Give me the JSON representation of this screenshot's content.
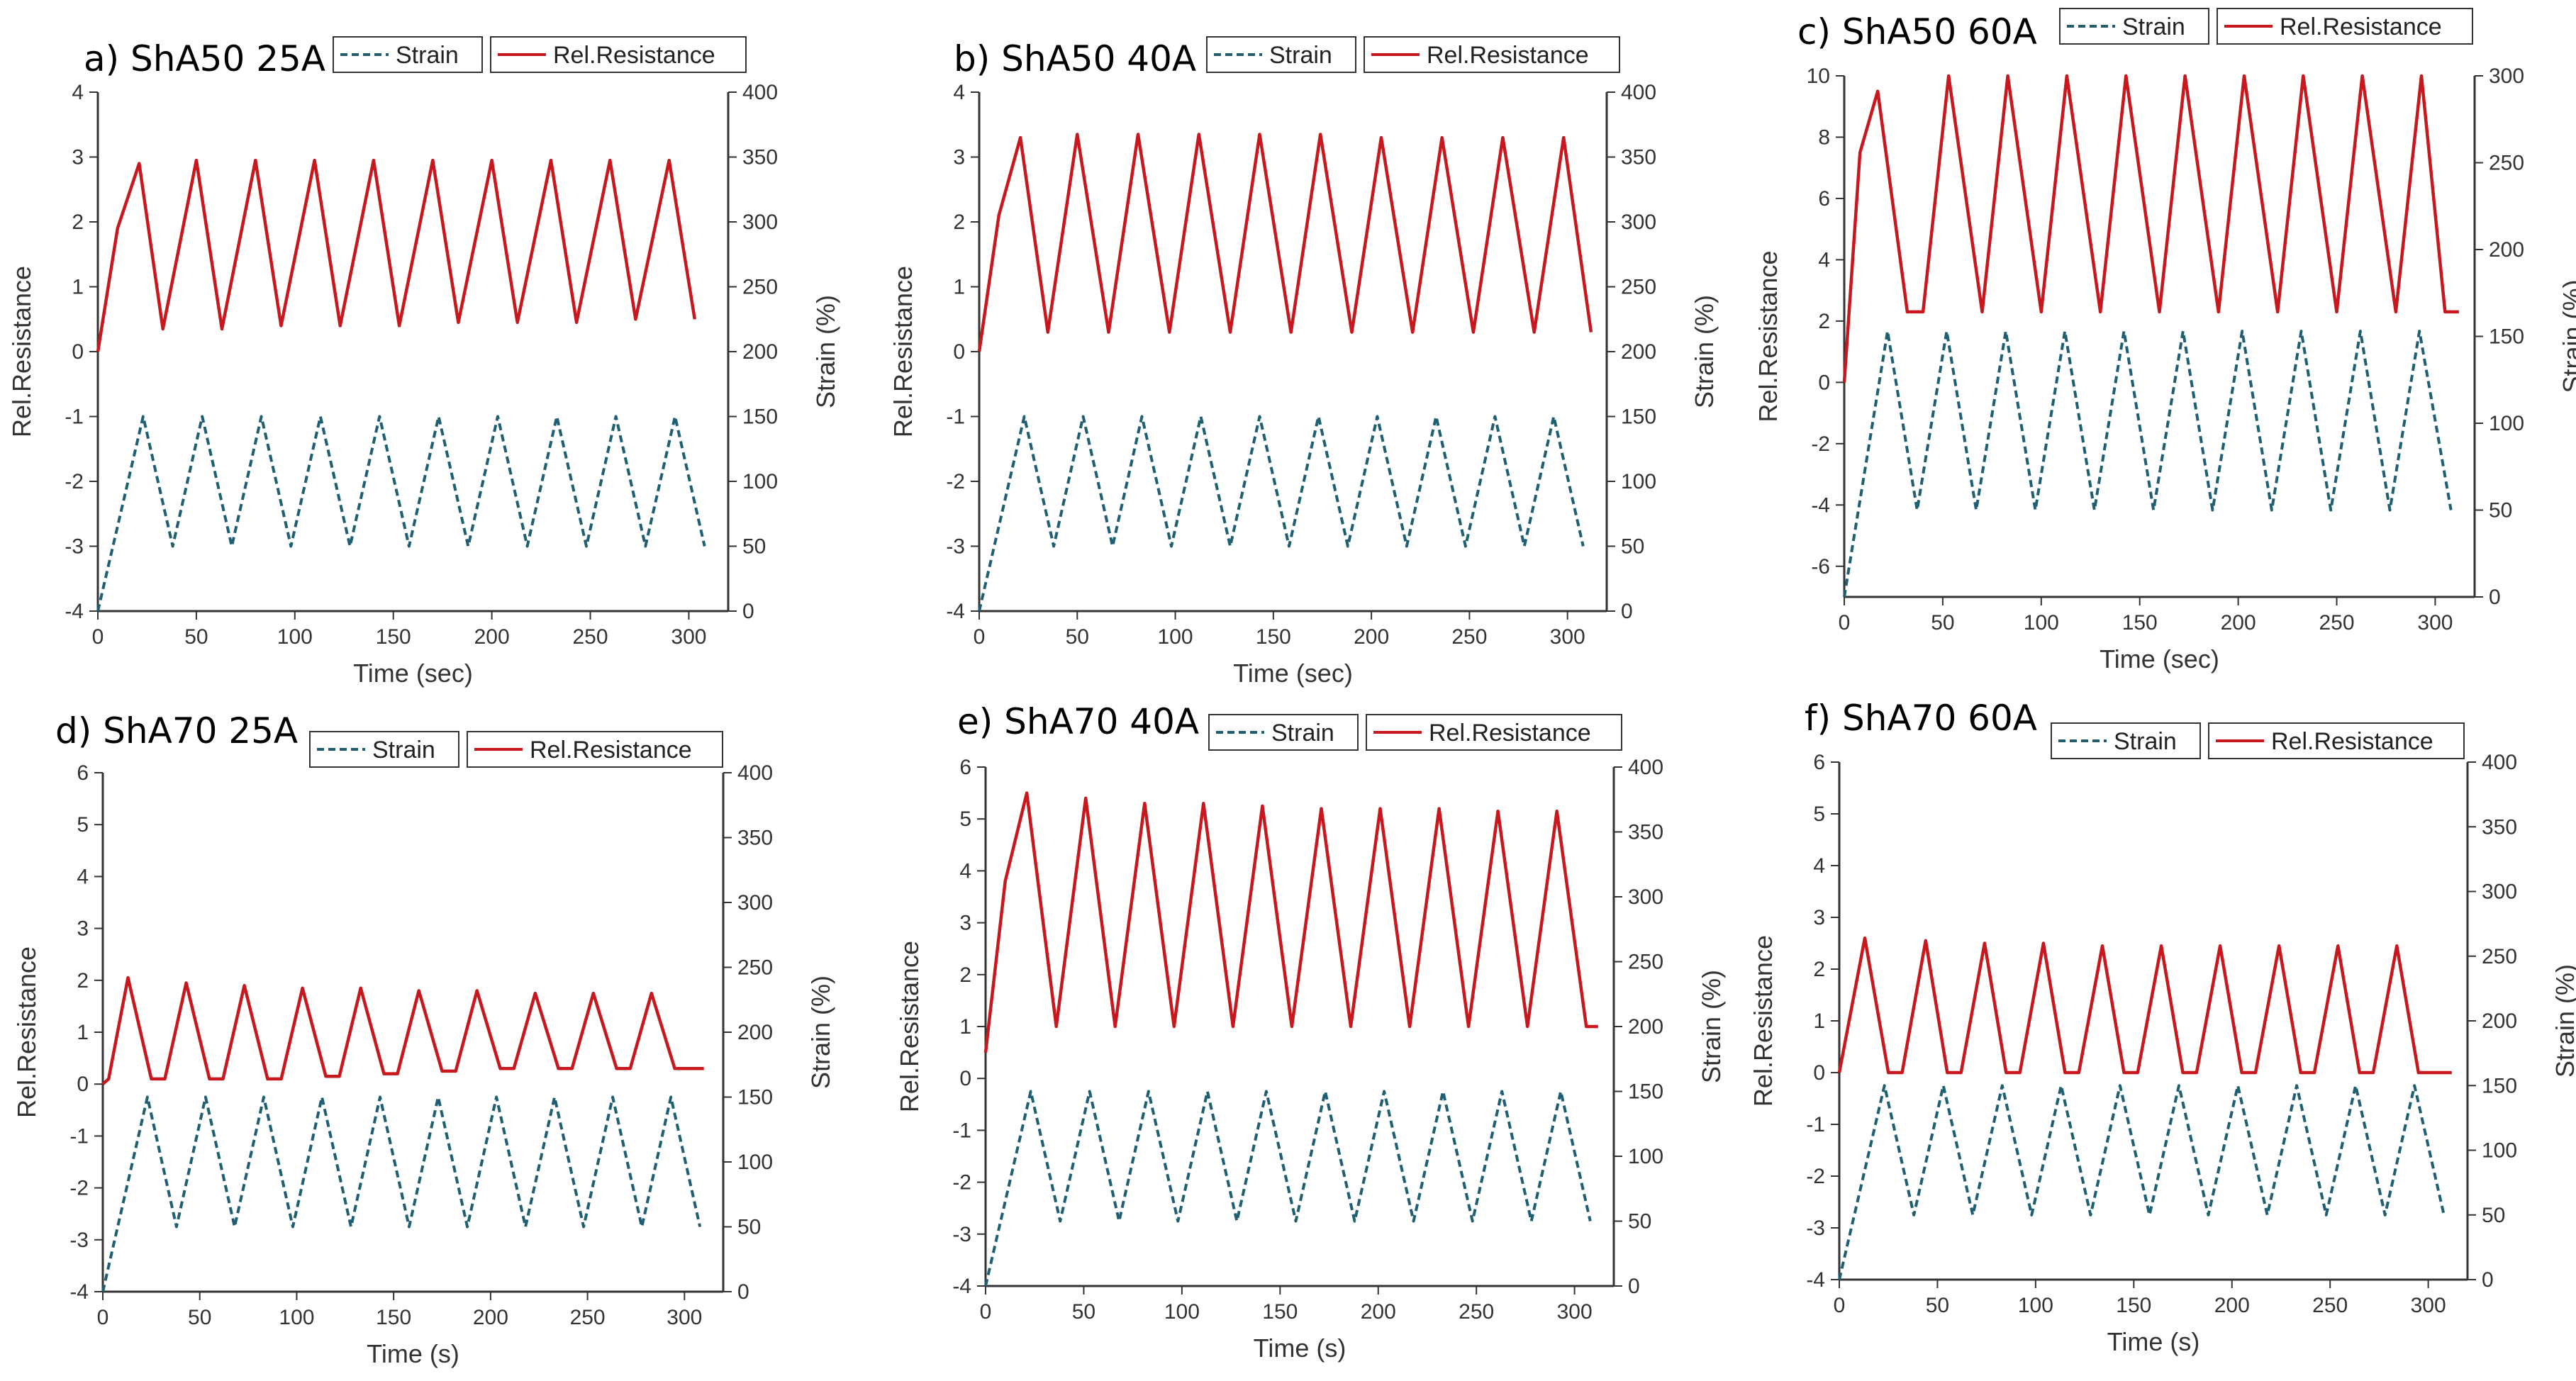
{
  "colors": {
    "strain": "#1f5f73",
    "resistance": "#c8181e",
    "axis": "#333333"
  },
  "chart_data": [
    {
      "id": "a",
      "type": "line",
      "title": "a) ShA50 25A",
      "xlabel": "Time (sec)",
      "ylabel": "Rel.Resistance",
      "y2label": "Strain (%)",
      "xlim": [
        0,
        320
      ],
      "ylim": [
        -4,
        4
      ],
      "y2lim": [
        0,
        400
      ],
      "xticks": [
        0,
        50,
        100,
        150,
        200,
        250,
        300
      ],
      "yticks": [
        -4,
        -3,
        -2,
        -1,
        0,
        1,
        2,
        3,
        4
      ],
      "y2ticks": [
        0,
        50,
        100,
        150,
        200,
        250,
        300,
        350,
        400
      ],
      "legend": [
        "Strain",
        "Rel.Resistance"
      ],
      "legend_position": "top",
      "series": [
        {
          "name": "Strain",
          "axis": "right",
          "style": "dashed",
          "x": [
            0,
            23,
            38,
            53,
            68,
            83,
            98,
            113,
            128,
            143,
            158,
            173,
            188,
            203,
            218,
            233,
            248,
            263,
            278,
            293,
            308
          ],
          "values": [
            0,
            150,
            50,
            150,
            50,
            150,
            50,
            150,
            50,
            150,
            50,
            150,
            50,
            150,
            50,
            150,
            50,
            150,
            50,
            150,
            50
          ]
        },
        {
          "name": "Rel.Resistance",
          "axis": "left",
          "style": "solid",
          "x": [
            0,
            10,
            21,
            33,
            50,
            63,
            80,
            93,
            110,
            123,
            140,
            153,
            170,
            183,
            200,
            213,
            230,
            243,
            260,
            273,
            290,
            303
          ],
          "values": [
            0,
            1.9,
            2.9,
            0.35,
            2.95,
            0.35,
            2.95,
            0.4,
            2.95,
            0.4,
            2.95,
            0.4,
            2.95,
            0.45,
            2.95,
            0.45,
            2.95,
            0.45,
            2.95,
            0.5,
            2.95,
            0.5
          ]
        }
      ]
    },
    {
      "id": "b",
      "type": "line",
      "title": "b) ShA50 40A",
      "xlabel": "Time (sec)",
      "ylabel": "Rel.Resistance",
      "y2label": "Strain (%)",
      "xlim": [
        0,
        320
      ],
      "ylim": [
        -4,
        4
      ],
      "y2lim": [
        0,
        400
      ],
      "xticks": [
        0,
        50,
        100,
        150,
        200,
        250,
        300
      ],
      "yticks": [
        -4,
        -3,
        -2,
        -1,
        0,
        1,
        2,
        3,
        4
      ],
      "y2ticks": [
        0,
        50,
        100,
        150,
        200,
        250,
        300,
        350,
        400
      ],
      "legend": [
        "Strain",
        "Rel.Resistance"
      ],
      "legend_position": "top",
      "series": [
        {
          "name": "Strain",
          "axis": "right",
          "style": "dashed",
          "x": [
            0,
            23,
            38,
            53,
            68,
            83,
            98,
            113,
            128,
            143,
            158,
            173,
            188,
            203,
            218,
            233,
            248,
            263,
            278,
            293,
            308
          ],
          "values": [
            0,
            150,
            50,
            150,
            50,
            150,
            50,
            150,
            50,
            150,
            50,
            150,
            50,
            150,
            50,
            150,
            50,
            150,
            50,
            150,
            50
          ]
        },
        {
          "name": "Rel.Resistance",
          "axis": "left",
          "style": "solid",
          "x": [
            0,
            10,
            21,
            35,
            50,
            66,
            81,
            97,
            112,
            128,
            143,
            159,
            174,
            190,
            205,
            221,
            236,
            252,
            267,
            283,
            298,
            312
          ],
          "values": [
            0,
            2.1,
            3.3,
            0.3,
            3.35,
            0.3,
            3.35,
            0.3,
            3.35,
            0.3,
            3.35,
            0.3,
            3.35,
            0.3,
            3.3,
            0.3,
            3.3,
            0.3,
            3.3,
            0.3,
            3.3,
            0.3
          ]
        }
      ]
    },
    {
      "id": "c",
      "type": "line",
      "title": "c) ShA50 60A",
      "xlabel": "Time (sec)",
      "ylabel": "Rel.Resistance",
      "y2label": "Strain (%)",
      "xlim": [
        0,
        320
      ],
      "ylim": [
        -7,
        10
      ],
      "y2lim": [
        0,
        300
      ],
      "xticks": [
        0,
        50,
        100,
        150,
        200,
        250,
        300
      ],
      "yticks": [
        -6,
        -4,
        -2,
        0,
        2,
        4,
        6,
        8,
        10
      ],
      "y2ticks": [
        0,
        50,
        100,
        150,
        200,
        250,
        300
      ],
      "legend": [
        "Strain",
        "Rel.Resistance"
      ],
      "legend_position": "top",
      "series": [
        {
          "name": "Strain",
          "axis": "right",
          "style": "dashed",
          "x": [
            0,
            22,
            37,
            52,
            67,
            82,
            97,
            112,
            127,
            142,
            157,
            172,
            187,
            202,
            217,
            232,
            247,
            262,
            277,
            292,
            308
          ],
          "values": [
            0,
            153,
            50,
            153,
            50,
            153,
            50,
            153,
            50,
            153,
            50,
            153,
            50,
            153,
            50,
            153,
            50,
            153,
            50,
            153,
            50
          ]
        },
        {
          "name": "Rel.Resistance",
          "axis": "left",
          "style": "solid",
          "x": [
            0,
            8,
            17,
            32,
            40,
            53,
            70,
            83,
            100,
            113,
            130,
            143,
            160,
            173,
            190,
            203,
            220,
            233,
            250,
            263,
            280,
            293,
            305,
            312
          ],
          "values": [
            0,
            7.5,
            9.5,
            2.3,
            2.3,
            10,
            2.3,
            10,
            2.3,
            10,
            2.3,
            10,
            2.3,
            10,
            2.3,
            10,
            2.3,
            10,
            2.3,
            10,
            2.3,
            10,
            2.3,
            2.3
          ]
        }
      ]
    },
    {
      "id": "d",
      "type": "line",
      "title": "d) ShA70 25A",
      "xlabel": "Time (s)",
      "ylabel": "Rel.Resistance",
      "y2label": "Strain (%)",
      "xlim": [
        0,
        320
      ],
      "ylim": [
        -4,
        6
      ],
      "y2lim": [
        0,
        400
      ],
      "xticks": [
        0,
        50,
        100,
        150,
        200,
        250,
        300
      ],
      "yticks": [
        -4,
        -3,
        -2,
        -1,
        0,
        1,
        2,
        3,
        4,
        5,
        6
      ],
      "y2ticks": [
        0,
        50,
        100,
        150,
        200,
        250,
        300,
        350,
        400
      ],
      "legend": [
        "Strain",
        "Rel.Resistance"
      ],
      "legend_position": "top",
      "series": [
        {
          "name": "Strain",
          "axis": "right",
          "style": "dashed",
          "x": [
            0,
            23,
            38,
            53,
            68,
            83,
            98,
            113,
            128,
            143,
            158,
            173,
            188,
            203,
            218,
            233,
            248,
            263,
            278,
            293,
            308
          ],
          "values": [
            0,
            150,
            50,
            150,
            50,
            150,
            50,
            150,
            50,
            150,
            50,
            150,
            50,
            150,
            50,
            150,
            50,
            150,
            50,
            150,
            50
          ]
        },
        {
          "name": "Rel.Resistance",
          "axis": "left",
          "style": "solid",
          "x": [
            0,
            3,
            13,
            25,
            32,
            43,
            55,
            62,
            73,
            85,
            92,
            103,
            115,
            122,
            133,
            145,
            152,
            163,
            175,
            182,
            193,
            205,
            212,
            223,
            235,
            242,
            253,
            265,
            272,
            283,
            295,
            302,
            310
          ],
          "values": [
            0,
            0.1,
            2.05,
            0.1,
            0.1,
            1.95,
            0.1,
            0.1,
            1.9,
            0.1,
            0.1,
            1.85,
            0.15,
            0.15,
            1.85,
            0.2,
            0.2,
            1.8,
            0.25,
            0.25,
            1.8,
            0.3,
            0.3,
            1.75,
            0.3,
            0.3,
            1.75,
            0.3,
            0.3,
            1.75,
            0.3,
            0.3,
            0.3
          ]
        }
      ]
    },
    {
      "id": "e",
      "type": "line",
      "title": "e) ShA70 40A",
      "xlabel": "Time (s)",
      "ylabel": "Rel.Resistance",
      "y2label": "Strain (%)",
      "xlim": [
        0,
        320
      ],
      "ylim": [
        -4,
        6
      ],
      "y2lim": [
        0,
        400
      ],
      "xticks": [
        0,
        50,
        100,
        150,
        200,
        250,
        300
      ],
      "yticks": [
        -4,
        -3,
        -2,
        -1,
        0,
        1,
        2,
        3,
        4,
        5,
        6
      ],
      "y2ticks": [
        0,
        50,
        100,
        150,
        200,
        250,
        300,
        350,
        400
      ],
      "legend": [
        "Strain",
        "Rel.Resistance"
      ],
      "legend_position": "top",
      "series": [
        {
          "name": "Strain",
          "axis": "right",
          "style": "dashed",
          "x": [
            0,
            23,
            38,
            53,
            68,
            83,
            98,
            113,
            128,
            143,
            158,
            173,
            188,
            203,
            218,
            233,
            248,
            263,
            278,
            293,
            308
          ],
          "values": [
            0,
            150,
            50,
            150,
            50,
            150,
            50,
            150,
            50,
            150,
            50,
            150,
            50,
            150,
            50,
            150,
            50,
            150,
            50,
            150,
            50
          ]
        },
        {
          "name": "Rel.Resistance",
          "axis": "left",
          "style": "solid",
          "x": [
            0,
            10,
            21,
            36,
            51,
            66,
            81,
            96,
            111,
            126,
            141,
            156,
            171,
            186,
            201,
            216,
            231,
            246,
            261,
            276,
            291,
            306,
            312
          ],
          "values": [
            0.5,
            3.8,
            5.5,
            1,
            5.4,
            1,
            5.3,
            1,
            5.3,
            1,
            5.25,
            1,
            5.2,
            1,
            5.2,
            1,
            5.2,
            1,
            5.15,
            1,
            5.15,
            1,
            1
          ]
        }
      ]
    },
    {
      "id": "f",
      "type": "line",
      "title": "f) ShA70 60A",
      "xlabel": "Time (s)",
      "ylabel": "Rel.Resistance",
      "y2label": "Strain (%)",
      "xlim": [
        0,
        320
      ],
      "ylim": [
        -4,
        6
      ],
      "y2lim": [
        0,
        400
      ],
      "xticks": [
        0,
        50,
        100,
        150,
        200,
        250,
        300
      ],
      "yticks": [
        -4,
        -3,
        -2,
        -1,
        0,
        1,
        2,
        3,
        4,
        5,
        6
      ],
      "y2ticks": [
        0,
        50,
        100,
        150,
        200,
        250,
        300,
        350,
        400
      ],
      "legend": [
        "Strain",
        "Rel.Resistance"
      ],
      "legend_position": "top",
      "series": [
        {
          "name": "Strain",
          "axis": "right",
          "style": "dashed",
          "x": [
            0,
            23,
            38,
            53,
            68,
            83,
            98,
            113,
            128,
            143,
            158,
            173,
            188,
            203,
            218,
            233,
            248,
            263,
            278,
            293,
            308
          ],
          "values": [
            0,
            150,
            50,
            150,
            50,
            150,
            50,
            150,
            50,
            150,
            50,
            150,
            50,
            150,
            50,
            150,
            50,
            150,
            50,
            150,
            50
          ]
        },
        {
          "name": "Rel.Resistance",
          "axis": "left",
          "style": "solid",
          "x": [
            0,
            13,
            25,
            32,
            44,
            55,
            62,
            74,
            85,
            92,
            104,
            115,
            122,
            134,
            145,
            152,
            164,
            175,
            182,
            194,
            205,
            212,
            224,
            235,
            242,
            254,
            265,
            272,
            284,
            295,
            302,
            312
          ],
          "values": [
            0,
            2.6,
            0,
            0,
            2.55,
            0,
            0,
            2.5,
            0,
            0,
            2.5,
            0,
            0,
            2.45,
            0,
            0,
            2.45,
            0,
            0,
            2.45,
            0,
            0,
            2.45,
            0,
            0,
            2.45,
            0,
            0,
            2.45,
            0,
            0,
            0
          ]
        }
      ]
    }
  ]
}
